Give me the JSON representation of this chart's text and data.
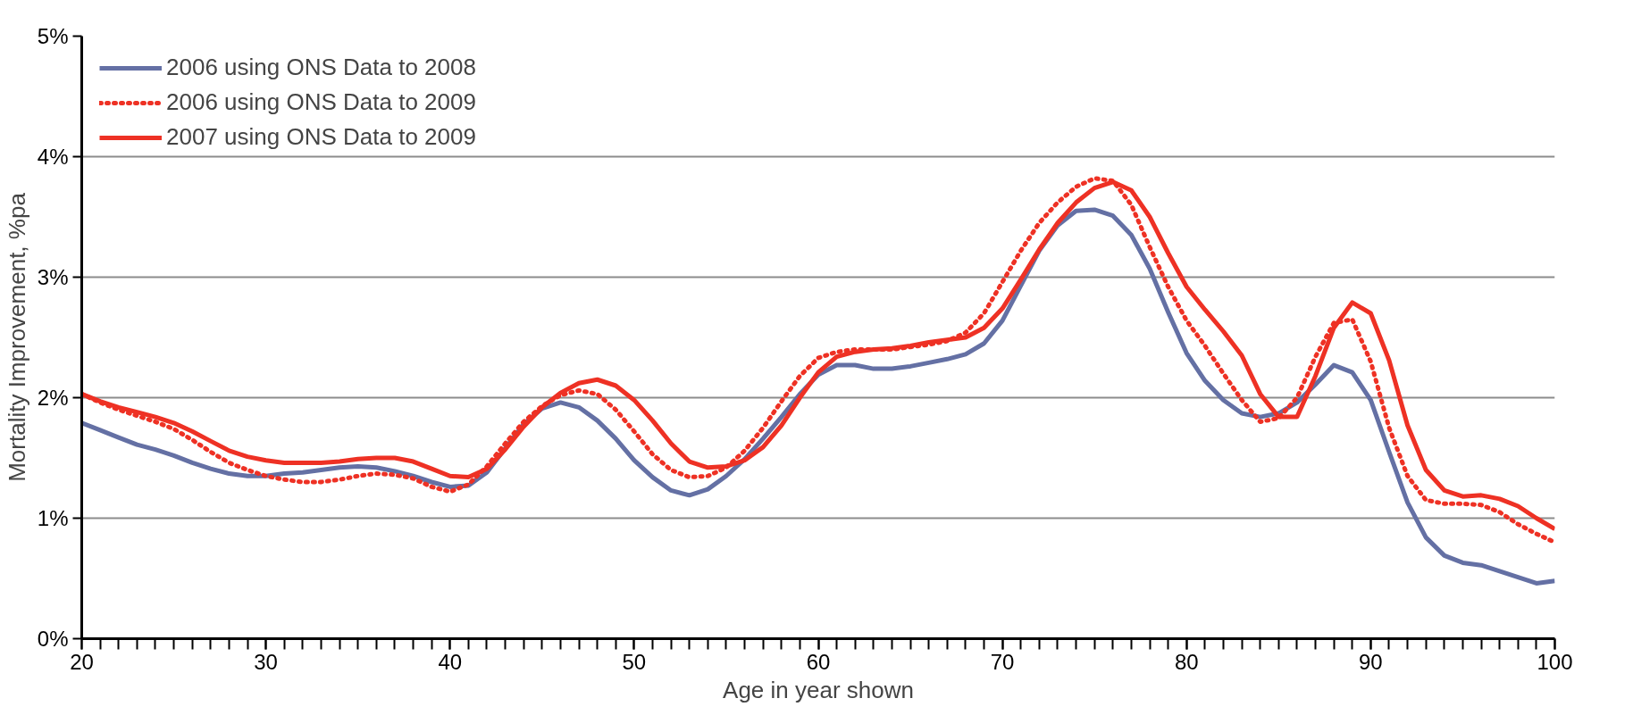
{
  "chart_data": {
    "type": "line",
    "xlabel": "Age in year shown",
    "ylabel": "Mortality Improvement, %pa",
    "x": [
      20,
      21,
      22,
      23,
      24,
      25,
      26,
      27,
      28,
      29,
      30,
      31,
      32,
      33,
      34,
      35,
      36,
      37,
      38,
      39,
      40,
      41,
      42,
      43,
      44,
      45,
      46,
      47,
      48,
      49,
      50,
      51,
      52,
      53,
      54,
      55,
      56,
      57,
      58,
      59,
      60,
      61,
      62,
      63,
      64,
      65,
      66,
      67,
      68,
      69,
      70,
      71,
      72,
      73,
      74,
      75,
      76,
      77,
      78,
      79,
      80,
      81,
      82,
      83,
      84,
      85,
      86,
      87,
      88,
      89,
      90,
      91,
      92,
      93,
      94,
      95,
      96,
      97,
      98,
      99,
      100
    ],
    "series": [
      {
        "name": "2006 using ONS Data to 2008",
        "color": "#6470a4",
        "line_style": "solid",
        "values": [
          1.79,
          1.73,
          1.67,
          1.61,
          1.57,
          1.52,
          1.46,
          1.41,
          1.37,
          1.35,
          1.35,
          1.37,
          1.38,
          1.4,
          1.42,
          1.43,
          1.42,
          1.39,
          1.35,
          1.3,
          1.26,
          1.27,
          1.38,
          1.58,
          1.78,
          1.91,
          1.96,
          1.92,
          1.81,
          1.66,
          1.48,
          1.34,
          1.23,
          1.19,
          1.24,
          1.35,
          1.49,
          1.66,
          1.84,
          2.03,
          2.19,
          2.27,
          2.27,
          2.24,
          2.24,
          2.26,
          2.29,
          2.32,
          2.36,
          2.45,
          2.64,
          2.93,
          3.22,
          3.43,
          3.55,
          3.56,
          3.51,
          3.35,
          3.07,
          2.71,
          2.37,
          2.14,
          1.98,
          1.87,
          1.84,
          1.87,
          1.96,
          2.11,
          2.27,
          2.21,
          1.98,
          1.55,
          1.13,
          0.84,
          0.69,
          0.63,
          0.61,
          0.56,
          0.51,
          0.46,
          0.48
        ]
      },
      {
        "name": "2006 using ONS Data to 2009",
        "color": "#ee3124",
        "line_style": "dotted",
        "values": [
          2.03,
          1.96,
          1.9,
          1.85,
          1.8,
          1.74,
          1.65,
          1.55,
          1.46,
          1.4,
          1.35,
          1.32,
          1.3,
          1.3,
          1.32,
          1.35,
          1.37,
          1.36,
          1.33,
          1.26,
          1.22,
          1.28,
          1.43,
          1.62,
          1.8,
          1.93,
          2.02,
          2.06,
          2.03,
          1.9,
          1.72,
          1.53,
          1.4,
          1.34,
          1.35,
          1.42,
          1.56,
          1.75,
          1.97,
          2.18,
          2.33,
          2.38,
          2.4,
          2.4,
          2.4,
          2.42,
          2.44,
          2.47,
          2.54,
          2.7,
          2.96,
          3.22,
          3.45,
          3.62,
          3.75,
          3.82,
          3.8,
          3.6,
          3.25,
          2.92,
          2.64,
          2.43,
          2.2,
          1.98,
          1.8,
          1.83,
          2.0,
          2.34,
          2.62,
          2.65,
          2.3,
          1.75,
          1.35,
          1.15,
          1.12,
          1.12,
          1.11,
          1.05,
          0.95,
          0.87,
          0.8
        ]
      },
      {
        "name": "2007 using ONS Data to 2009",
        "color": "#ee3124",
        "line_style": "solid",
        "values": [
          2.03,
          1.97,
          1.92,
          1.88,
          1.84,
          1.79,
          1.72,
          1.64,
          1.56,
          1.51,
          1.48,
          1.46,
          1.46,
          1.46,
          1.47,
          1.49,
          1.5,
          1.5,
          1.47,
          1.41,
          1.35,
          1.34,
          1.41,
          1.57,
          1.76,
          1.92,
          2.04,
          2.12,
          2.15,
          2.1,
          1.98,
          1.81,
          1.62,
          1.47,
          1.42,
          1.43,
          1.48,
          1.59,
          1.77,
          2.0,
          2.21,
          2.34,
          2.38,
          2.4,
          2.41,
          2.43,
          2.46,
          2.48,
          2.5,
          2.58,
          2.74,
          2.98,
          3.23,
          3.45,
          3.62,
          3.74,
          3.79,
          3.72,
          3.5,
          3.2,
          2.92,
          2.73,
          2.55,
          2.35,
          2.03,
          1.84,
          1.84,
          2.18,
          2.58,
          2.79,
          2.7,
          2.31,
          1.77,
          1.4,
          1.23,
          1.18,
          1.19,
          1.16,
          1.1,
          1.0,
          0.91
        ]
      }
    ],
    "xlim": [
      20,
      100
    ],
    "ylim": [
      0,
      5
    ],
    "xticks": [
      20,
      30,
      40,
      50,
      60,
      70,
      80,
      90,
      100
    ],
    "yticks": [
      {
        "value": 0,
        "label": "0%"
      },
      {
        "value": 1,
        "label": "1%"
      },
      {
        "value": 2,
        "label": "2%"
      },
      {
        "value": 3,
        "label": "3%"
      },
      {
        "value": 4,
        "label": "4%"
      },
      {
        "value": 5,
        "label": "5%"
      }
    ],
    "grid": "y",
    "legend": "top left",
    "marker": "none"
  }
}
